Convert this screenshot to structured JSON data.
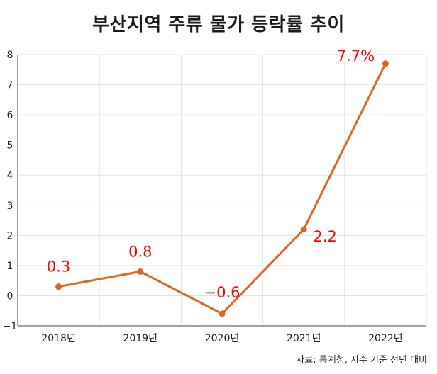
{
  "title": "부산지역 주류 물가 등락률 추이",
  "source": "자료: 통계청, 지수 기준 전년 대비",
  "chart_data": {
    "type": "line",
    "title": "부산지역 주류 물가 등락률 추이",
    "xlabel": "",
    "ylabel": "",
    "categories": [
      "2018년",
      "2019년",
      "2020년",
      "2021년",
      "2022년"
    ],
    "series": [
      {
        "values": [
          0.3,
          0.8,
          -0.6,
          2.2,
          7.7
        ]
      }
    ],
    "data_labels": [
      "0.3",
      "0.8",
      "−0.6",
      "2.2",
      "7.7%"
    ],
    "ylim": [
      -1,
      8
    ],
    "yticks": [
      "−1",
      "0",
      "1",
      "2",
      "3",
      "4",
      "5",
      "6",
      "7",
      "8"
    ],
    "grid": true,
    "legend": "none",
    "colors": {
      "line": "#e06424",
      "label": "#ff0000",
      "grid": "#e3e3e3",
      "axis": "#444444"
    }
  }
}
